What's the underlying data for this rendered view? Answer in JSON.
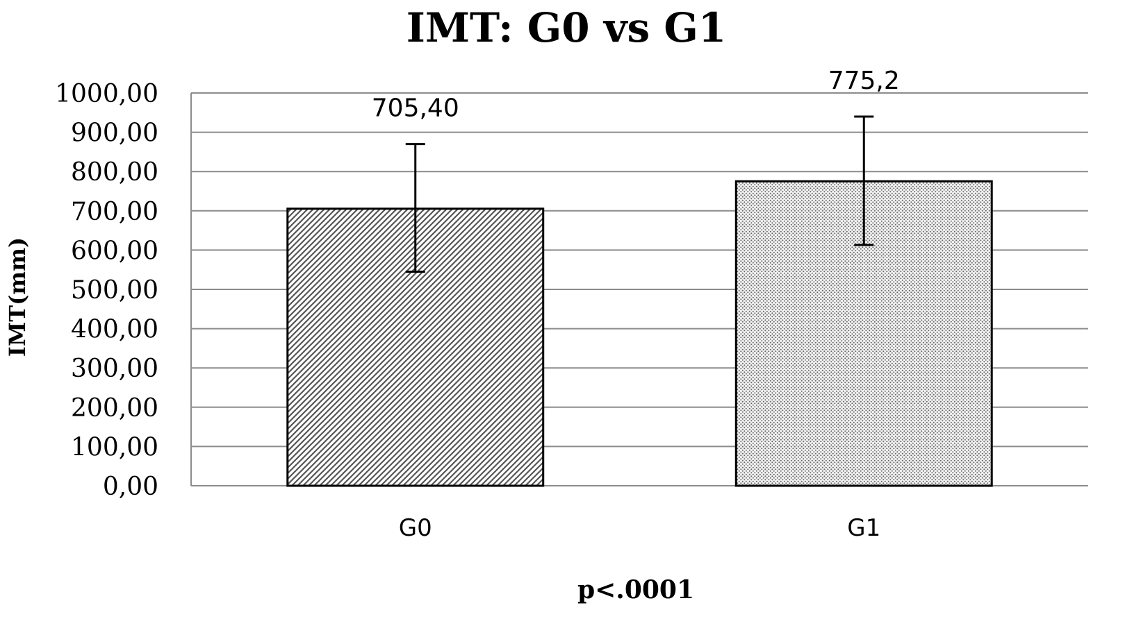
{
  "chart_data": {
    "type": "bar",
    "title": "IMT: G0 vs G1",
    "xlabel": "p<.0001",
    "ylabel": "IMT(mm)",
    "ylim": [
      0,
      1000
    ],
    "ytick_step": 100,
    "ytick_labels": [
      "0,00",
      "100,00",
      "200,00",
      "300,00",
      "400,00",
      "500,00",
      "600,00",
      "700,00",
      "800,00",
      "900,00",
      "1000,00"
    ],
    "categories": [
      "G0",
      "G1"
    ],
    "values": [
      705.4,
      775.2
    ],
    "data_labels": [
      "705,40",
      "775,2"
    ],
    "error_low": [
      545,
      613
    ],
    "error_high": [
      870,
      940
    ],
    "patterns": [
      "diagonal-hatch",
      "dots"
    ],
    "grid": true,
    "legend": "none",
    "colors": {
      "bar_fill": "#ffffff",
      "bar_stroke": "#000000",
      "grid": "#8c8c8c",
      "pattern": "#555555"
    }
  }
}
